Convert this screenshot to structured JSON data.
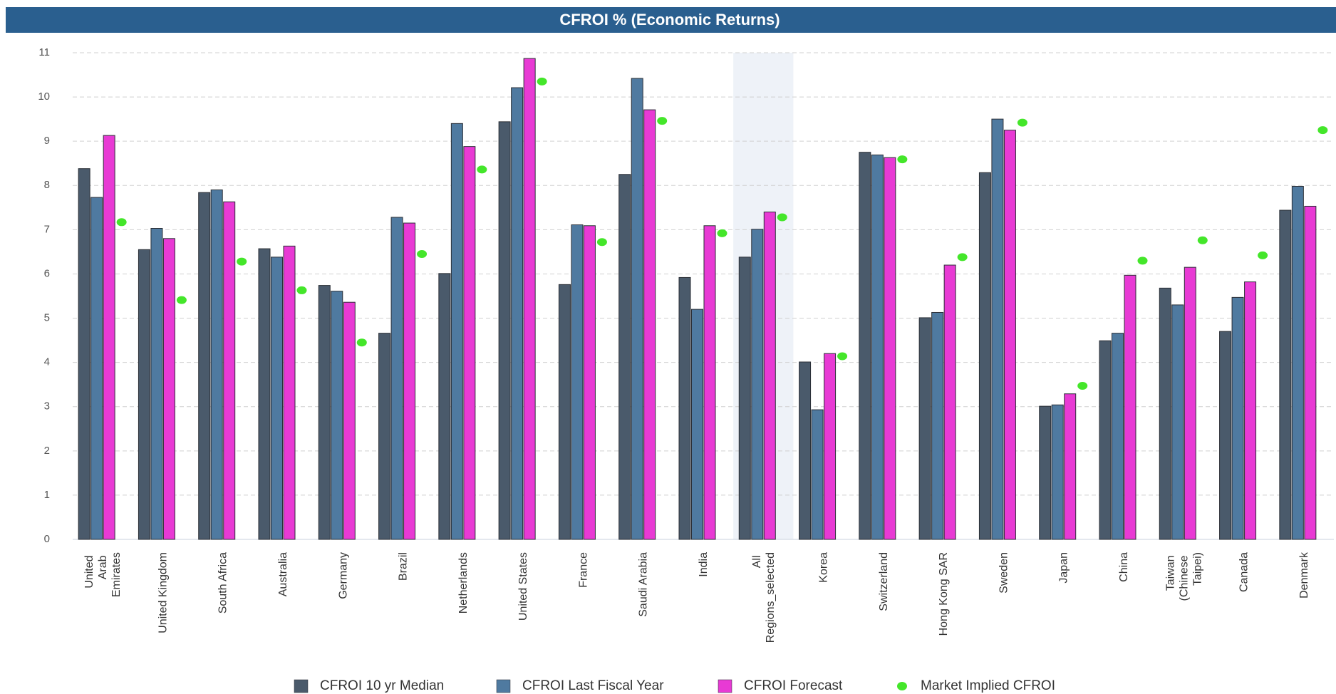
{
  "chart_data": {
    "type": "bar",
    "title": "CFROI % (Economic Returns)",
    "categories": [
      "United Arab Emirates",
      "United Kingdom",
      "South Africa",
      "Australia",
      "Germany",
      "Brazil",
      "Netherlands",
      "United States",
      "France",
      "Saudi Arabia",
      "India",
      "All Regions_selected",
      "Korea",
      "Switzerland",
      "Hong Kong SAR",
      "Sweden",
      "Japan",
      "China",
      "Taiwan (Chinese Taipei)",
      "Canada",
      "Denmark"
    ],
    "series": [
      {
        "name": "CFROI 10 yr Median",
        "color": "#4a5a6b",
        "values": [
          8.38,
          6.55,
          7.84,
          6.57,
          5.74,
          4.66,
          6.01,
          9.44,
          5.76,
          8.25,
          5.92,
          6.38,
          4.01,
          8.75,
          5.01,
          8.29,
          3.01,
          4.49,
          5.68,
          4.7,
          7.44
        ]
      },
      {
        "name": "CFROI Last Fiscal Year",
        "color": "#4f7aa0",
        "values": [
          7.73,
          7.03,
          7.9,
          6.38,
          5.61,
          7.28,
          9.4,
          10.21,
          7.11,
          10.42,
          5.2,
          7.01,
          2.93,
          8.69,
          5.13,
          9.5,
          3.04,
          4.66,
          5.3,
          5.47,
          7.98
        ]
      },
      {
        "name": "CFROI Forecast",
        "color": "#e83ad4",
        "values": [
          9.13,
          6.8,
          7.63,
          6.63,
          5.36,
          7.15,
          8.88,
          10.87,
          7.09,
          9.71,
          7.09,
          7.4,
          4.2,
          8.63,
          6.2,
          9.25,
          3.29,
          5.97,
          6.15,
          5.82,
          7.53
        ]
      },
      {
        "name": "Market Implied CFROI",
        "color": "#44e62a",
        "type": "scatter",
        "values": [
          7.17,
          5.41,
          6.28,
          5.63,
          4.45,
          6.45,
          8.36,
          10.35,
          6.72,
          9.46,
          6.92,
          7.28,
          4.14,
          8.59,
          6.38,
          9.42,
          3.47,
          6.3,
          6.76,
          6.42,
          9.25
        ]
      }
    ],
    "ylim": [
      0,
      11
    ],
    "yticks": [
      0,
      1,
      2,
      3,
      4,
      5,
      6,
      7,
      8,
      9,
      10,
      11
    ],
    "grid": true,
    "highlighted_category": "All Regions_selected",
    "legend": "bottom"
  }
}
